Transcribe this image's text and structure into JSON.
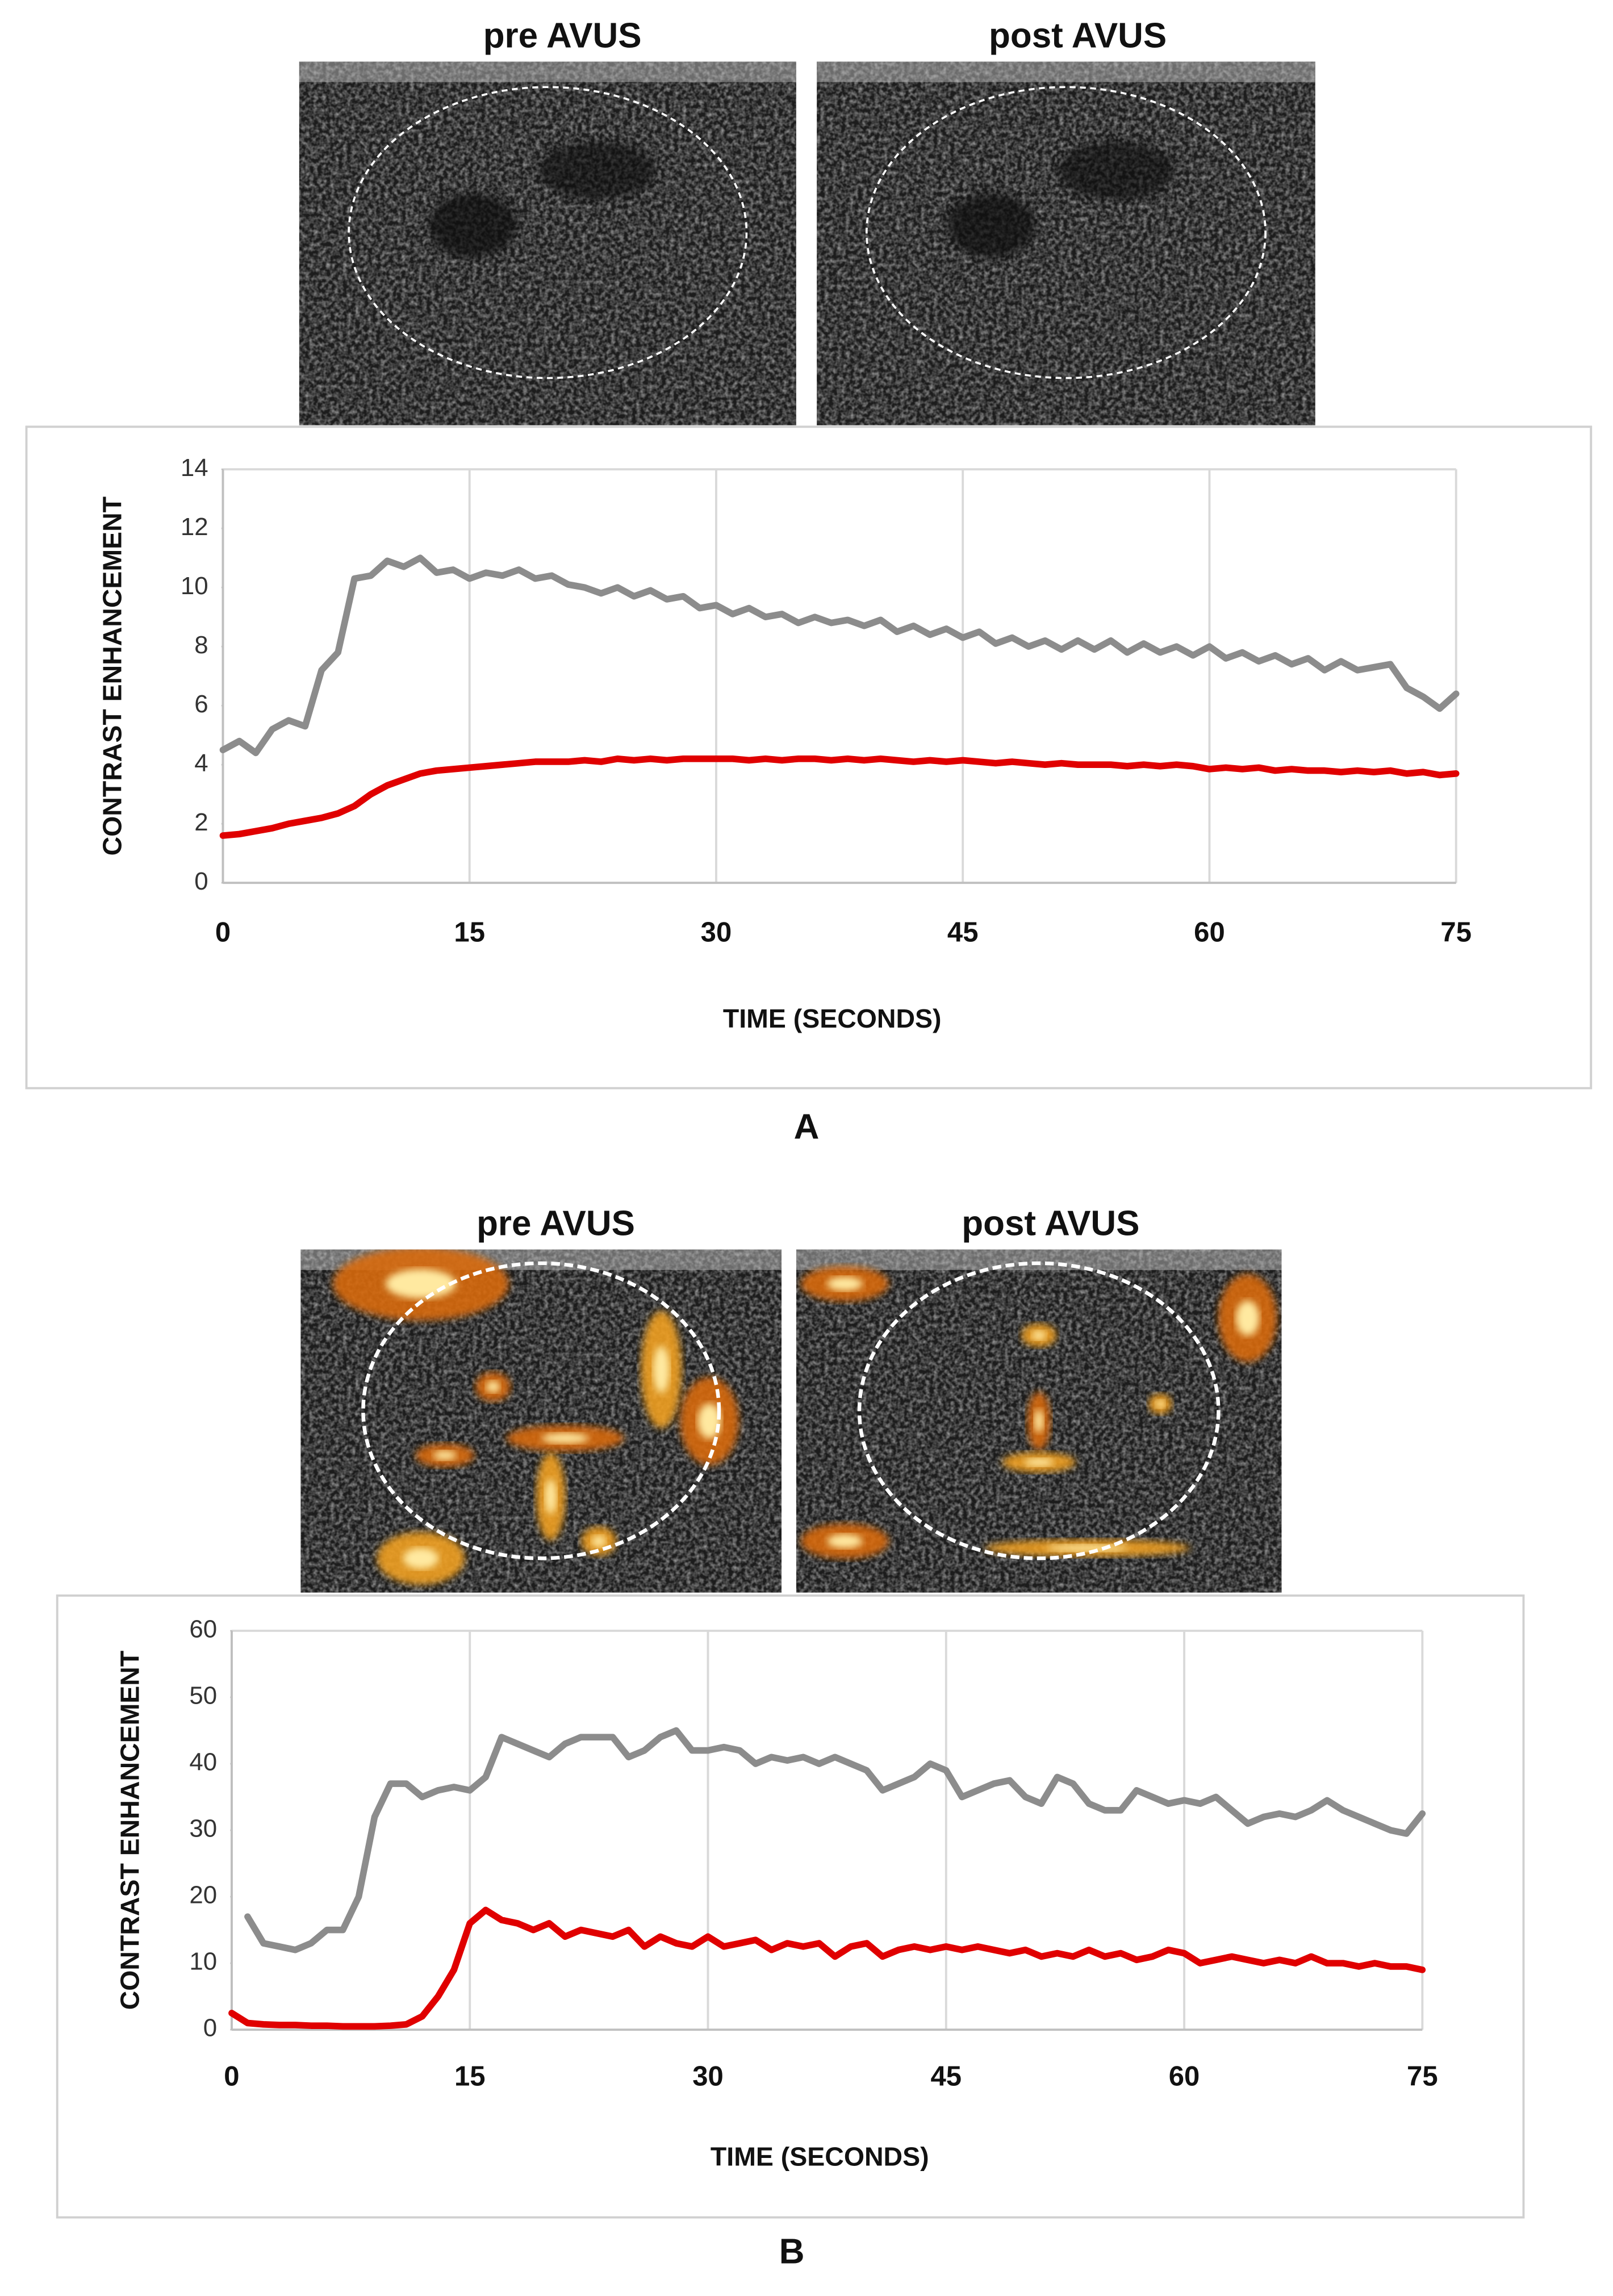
{
  "chart_data": [
    {
      "type": "line",
      "panel_label": "A",
      "image_titles": [
        "pre AVUS",
        "post AVUS"
      ],
      "xlabel": "TIME (SECONDS)",
      "ylabel": "CONTRAST ENHANCEMENT",
      "xlim": [
        0,
        75
      ],
      "xticks": [
        0,
        15,
        30,
        45,
        60,
        75
      ],
      "ylim": [
        0,
        14
      ],
      "yticks": [
        0,
        2,
        4,
        6,
        8,
        10,
        12,
        14
      ],
      "grid": "x",
      "x": [
        0,
        1,
        2,
        3,
        4,
        5,
        6,
        7,
        8,
        9,
        10,
        11,
        12,
        13,
        14,
        15,
        16,
        17,
        18,
        19,
        20,
        21,
        22,
        23,
        24,
        25,
        26,
        27,
        28,
        29,
        30,
        31,
        32,
        33,
        34,
        35,
        36,
        37,
        38,
        39,
        40,
        41,
        42,
        43,
        44,
        45,
        46,
        47,
        48,
        49,
        50,
        51,
        52,
        53,
        54,
        55,
        56,
        57,
        58,
        59,
        60,
        61,
        62,
        63,
        64,
        65,
        66,
        67,
        68,
        69,
        70,
        71,
        72,
        73,
        74,
        75
      ],
      "series": [
        {
          "color": "#8c8c8c",
          "values": [
            4.5,
            4.8,
            4.4,
            5.2,
            5.5,
            5.3,
            7.2,
            7.8,
            10.3,
            10.4,
            10.9,
            10.7,
            11.0,
            10.5,
            10.6,
            10.3,
            10.5,
            10.4,
            10.6,
            10.3,
            10.4,
            10.1,
            10.0,
            9.8,
            10.0,
            9.7,
            9.9,
            9.6,
            9.7,
            9.3,
            9.4,
            9.1,
            9.3,
            9.0,
            9.1,
            8.8,
            9.0,
            8.8,
            8.9,
            8.7,
            8.9,
            8.5,
            8.7,
            8.4,
            8.6,
            8.3,
            8.5,
            8.1,
            8.3,
            8.0,
            8.2,
            7.9,
            8.2,
            7.9,
            8.2,
            7.8,
            8.1,
            7.8,
            8.0,
            7.7,
            8.0,
            7.6,
            7.8,
            7.5,
            7.7,
            7.4,
            7.6,
            7.2,
            7.5,
            7.2,
            7.3,
            7.4,
            6.6,
            6.3,
            5.9,
            6.4
          ]
        },
        {
          "color": "#e00000",
          "values": [
            1.6,
            1.65,
            1.75,
            1.85,
            2.0,
            2.1,
            2.2,
            2.35,
            2.6,
            3.0,
            3.3,
            3.5,
            3.7,
            3.8,
            3.85,
            3.9,
            3.95,
            4.0,
            4.05,
            4.1,
            4.1,
            4.1,
            4.15,
            4.1,
            4.2,
            4.15,
            4.2,
            4.15,
            4.2,
            4.2,
            4.2,
            4.2,
            4.15,
            4.2,
            4.15,
            4.2,
            4.2,
            4.15,
            4.2,
            4.15,
            4.2,
            4.15,
            4.1,
            4.15,
            4.1,
            4.15,
            4.1,
            4.05,
            4.1,
            4.05,
            4.0,
            4.05,
            4.0,
            4.0,
            4.0,
            3.95,
            4.0,
            3.95,
            4.0,
            3.95,
            3.85,
            3.9,
            3.85,
            3.9,
            3.8,
            3.85,
            3.8,
            3.8,
            3.75,
            3.8,
            3.75,
            3.8,
            3.7,
            3.75,
            3.65,
            3.7
          ]
        }
      ]
    },
    {
      "type": "line",
      "panel_label": "B",
      "image_titles": [
        "pre AVUS",
        "post AVUS"
      ],
      "xlabel": "TIME (SECONDS)",
      "ylabel": "CONTRAST ENHANCEMENT",
      "xlim": [
        0,
        75
      ],
      "xticks": [
        0,
        15,
        30,
        45,
        60,
        75
      ],
      "ylim": [
        0,
        60
      ],
      "yticks": [
        0,
        10,
        20,
        30,
        40,
        50,
        60
      ],
      "grid": "x",
      "x": [
        0,
        1,
        2,
        3,
        4,
        5,
        6,
        7,
        8,
        9,
        10,
        11,
        12,
        13,
        14,
        15,
        16,
        17,
        18,
        19,
        20,
        21,
        22,
        23,
        24,
        25,
        26,
        27,
        28,
        29,
        30,
        31,
        32,
        33,
        34,
        35,
        36,
        37,
        38,
        39,
        40,
        41,
        42,
        43,
        44,
        45,
        46,
        47,
        48,
        49,
        50,
        51,
        52,
        53,
        54,
        55,
        56,
        57,
        58,
        59,
        60,
        61,
        62,
        63,
        64,
        65,
        66,
        67,
        68,
        69,
        70,
        71,
        72,
        73,
        74,
        75
      ],
      "series": [
        {
          "color": "#8c8c8c",
          "values": [
            null,
            17,
            13,
            12.5,
            12,
            13,
            15,
            15,
            20,
            32,
            37,
            37,
            35,
            36,
            36.5,
            36,
            38,
            44,
            43,
            42,
            41,
            43,
            44,
            44,
            44,
            41,
            42,
            44,
            45,
            42,
            42,
            42.5,
            42,
            40,
            41,
            40.5,
            41,
            40,
            41,
            40,
            39,
            36,
            37,
            38,
            40,
            39,
            35,
            36,
            37,
            37.5,
            35,
            34,
            38,
            37,
            34,
            33,
            33,
            36,
            35,
            34,
            34.5,
            34,
            35,
            33,
            31,
            32,
            32.5,
            32,
            33,
            34.5,
            33,
            32,
            31,
            30,
            29.5,
            32.5
          ]
        },
        {
          "color": "#e00000",
          "values": [
            2.5,
            1,
            0.8,
            0.7,
            0.7,
            0.6,
            0.6,
            0.5,
            0.5,
            0.5,
            0.6,
            0.8,
            2,
            5,
            9,
            16,
            18,
            16.5,
            16,
            15,
            16,
            14,
            15,
            14.5,
            14,
            15,
            12.5,
            14,
            13,
            12.5,
            14,
            12.5,
            13,
            13.5,
            12,
            13,
            12.5,
            13,
            11,
            12.5,
            13,
            11,
            12,
            12.5,
            12,
            12.5,
            12,
            12.5,
            12,
            11.5,
            12,
            11,
            11.5,
            11,
            12,
            11,
            11.5,
            10.5,
            11,
            12,
            11.5,
            10,
            10.5,
            11,
            10.5,
            10,
            10.5,
            10,
            11,
            10,
            10,
            9.5,
            10,
            9.5,
            9.5,
            9
          ]
        }
      ]
    }
  ]
}
